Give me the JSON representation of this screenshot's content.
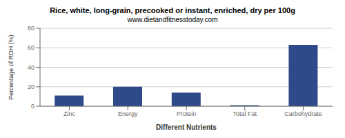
{
  "chart_data": {
    "type": "bar",
    "title": "Rice, white, long-grain, precooked or instant, enriched, dry per 100g",
    "subtitle": "www.dietandfitnesstoday.com",
    "xlabel": "Different Nutrients",
    "ylabel": "Percentage of RDH (%)",
    "categories": [
      "Zinc",
      "Energy",
      "Protein",
      "Total Fat",
      "Carbohydrate"
    ],
    "values": [
      11,
      20,
      14,
      1,
      63
    ],
    "color": "#2e4a8a",
    "ylim": [
      0,
      80
    ],
    "yticks": [
      0,
      20,
      40,
      60,
      80
    ],
    "grid": true
  }
}
